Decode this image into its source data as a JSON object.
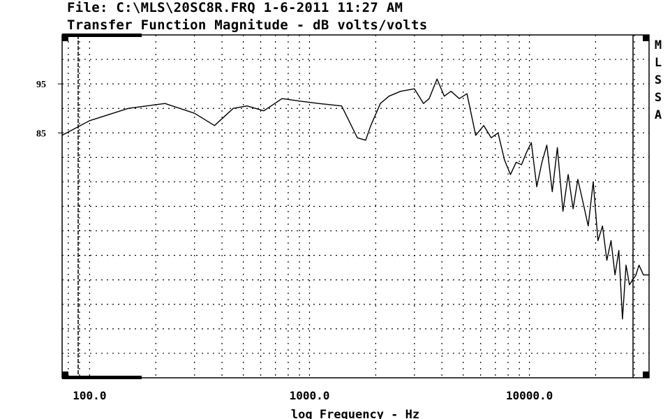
{
  "header": {
    "file_line": "File: C:\\MLS\\20SC8R.FRQ 1-6-2011 11:27 AM",
    "title_line": "Transfer Function Magnitude - dB volts/volts"
  },
  "side_label": [
    "M",
    "L",
    "S",
    "S",
    "A"
  ],
  "chart_data": {
    "type": "line",
    "title": "Transfer Function Magnitude - dB volts/volts",
    "xlabel": "log Frequency - Hz",
    "ylabel": "",
    "x_scale": "log",
    "xlim": [
      75,
      35000
    ],
    "ylim": [
      35,
      105
    ],
    "grid": true,
    "x_ticks": [
      {
        "value": 100,
        "label": "100.0"
      },
      {
        "value": 1000,
        "label": "1000.0"
      },
      {
        "value": 10000,
        "label": "10000.0"
      }
    ],
    "y_ticks": [
      {
        "value": 95,
        "label": "95"
      },
      {
        "value": 85,
        "label": "85"
      }
    ],
    "series": [
      {
        "color": "#000000",
        "x": [
          75,
          100,
          150,
          220,
          300,
          370,
          450,
          520,
          620,
          750,
          900,
          1100,
          1400,
          1650,
          1800,
          1900,
          2100,
          2300,
          2600,
          3000,
          3300,
          3500,
          3800,
          4100,
          4400,
          4800,
          5200,
          5700,
          6200,
          6700,
          7200,
          7700,
          8200,
          8700,
          9200,
          9700,
          10200,
          10800,
          11400,
          12000,
          12700,
          13400,
          14200,
          15000,
          15800,
          16600,
          17500,
          18500,
          19500,
          20500,
          21500,
          22500,
          23500,
          24500,
          25500,
          26500,
          27500,
          28500,
          29500,
          30500,
          31500,
          33000,
          35000
        ],
        "y": [
          84.5,
          87.5,
          90,
          91,
          89,
          86.5,
          90,
          90.5,
          89.5,
          92,
          91.5,
          91,
          90.5,
          84,
          83.5,
          86.5,
          91,
          92.5,
          93.5,
          94,
          91,
          92,
          96,
          92.5,
          93.5,
          92,
          93,
          84.5,
          86.5,
          84,
          85,
          79.5,
          76.5,
          79,
          78.5,
          81,
          83,
          74,
          79,
          82.5,
          73,
          82,
          69,
          76.5,
          69.5,
          75.5,
          71,
          66,
          75,
          63,
          66,
          59,
          63,
          56,
          61,
          47,
          58,
          54,
          55,
          56,
          58,
          56,
          56
        ]
      }
    ]
  }
}
